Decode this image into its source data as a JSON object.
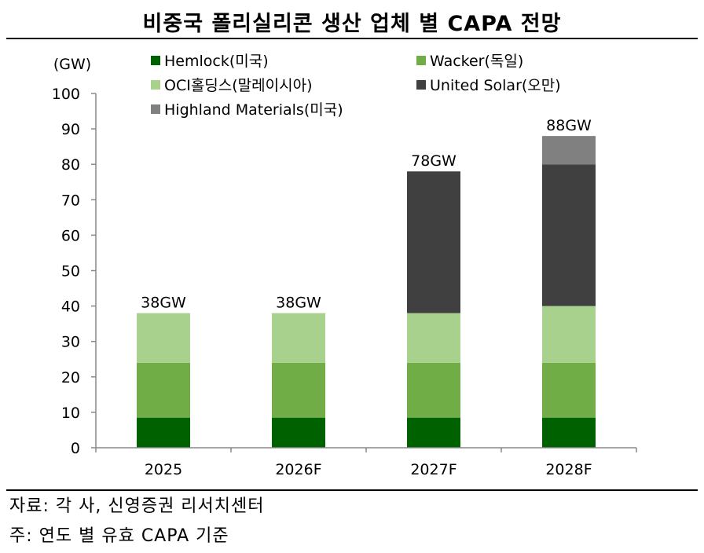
{
  "title": "비중국 폴리실리콘 생산 업체 별 CAPA 전망",
  "source_note": "자료: 각 사, 신영증권 리서치센터",
  "basis_note": "주: 연도 별 유효 CAPA 기준",
  "chart_data": {
    "type": "bar",
    "stacked": true,
    "title": "비중국 폴리실리콘 생산 업체 별 CAPA 전망",
    "ylabel": "(GW)",
    "xlabel": "",
    "ylim": [
      0,
      100
    ],
    "yticks": [
      0,
      10,
      20,
      30,
      40,
      50,
      60,
      70,
      80,
      90,
      100
    ],
    "categories": [
      "2025",
      "2026F",
      "2027F",
      "2028F"
    ],
    "series": [
      {
        "name": "Hemlock(미국)",
        "color": "#006100",
        "values": [
          8.5,
          8.5,
          8.5,
          8.5
        ]
      },
      {
        "name": "Wacker(독일)",
        "color": "#70AD47",
        "values": [
          15.5,
          15.5,
          15.5,
          15.5
        ]
      },
      {
        "name": "OCI홀딩스(말레이시아)",
        "color": "#A9D18E",
        "values": [
          14,
          14,
          14,
          16
        ]
      },
      {
        "name": "United Solar(오만)",
        "color": "#404040",
        "values": [
          0,
          0,
          40,
          40
        ]
      },
      {
        "name": "Highland Materials(미국)",
        "color": "#808080",
        "values": [
          0,
          0,
          0,
          8
        ]
      }
    ],
    "totals": [
      "38GW",
      "38GW",
      "78GW",
      "88GW"
    ],
    "legend_position": "top",
    "grid": false
  }
}
